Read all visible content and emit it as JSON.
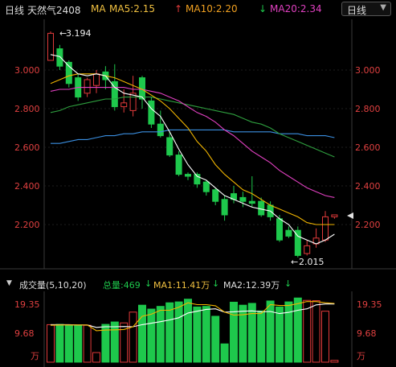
{
  "header": {
    "period": "日线",
    "instrument": "天然气2408",
    "ma_label": "MA",
    "ma5": "MA5:2.15",
    "ma10": "MA10:2.20",
    "ma20": "MA20:2.34",
    "period_selector": "日线"
  },
  "colors": {
    "up": "#e03a3a",
    "down": "#1ec84c",
    "ma5": "#ffffff",
    "ma10": "#f0b400",
    "ma20": "#e040c0",
    "ma60": "#2e9e3e",
    "ma120": "#3a8ee0",
    "price_label": "#e04040"
  },
  "axis": {
    "price_ticks": [
      "3.000",
      "2.800",
      "2.600",
      "2.400",
      "2.200"
    ],
    "volume_ticks_left": [
      "19.35",
      "9.68",
      "万"
    ],
    "volume_ticks_right": [
      "19.35",
      "9.68",
      "万"
    ]
  },
  "annotations": {
    "high": "3.194",
    "low": "2.015"
  },
  "volume_header": {
    "title": "成交量(5,10,20)",
    "total": "总量:469",
    "ma1": "MA1:11.41万",
    "ma2": "MA2:12.39万"
  },
  "chart_data": {
    "type": "candlestick",
    "price_range": [
      2.03,
      3.18
    ],
    "volume_max_wan": 21,
    "candles": [
      {
        "o": 3.05,
        "c": 3.19,
        "h": 3.2,
        "l": 3.05
      },
      {
        "o": 3.11,
        "c": 3.02,
        "h": 3.13,
        "l": 3.0
      },
      {
        "o": 3.04,
        "c": 2.93,
        "h": 3.05,
        "l": 2.91
      },
      {
        "o": 2.96,
        "c": 2.86,
        "h": 2.98,
        "l": 2.84
      },
      {
        "o": 2.88,
        "c": 2.95,
        "h": 2.96,
        "l": 2.86
      },
      {
        "o": 2.92,
        "c": 2.98,
        "h": 3.0,
        "l": 2.88
      },
      {
        "o": 2.99,
        "c": 2.95,
        "h": 3.02,
        "l": 2.9
      },
      {
        "o": 2.94,
        "c": 2.81,
        "h": 3.03,
        "l": 2.79
      },
      {
        "o": 2.81,
        "c": 2.83,
        "h": 2.9,
        "l": 2.78
      },
      {
        "o": 2.79,
        "c": 2.88,
        "h": 2.97,
        "l": 2.76
      },
      {
        "o": 2.96,
        "c": 2.85,
        "h": 2.97,
        "l": 2.8
      },
      {
        "o": 2.84,
        "c": 2.72,
        "h": 2.86,
        "l": 2.7
      },
      {
        "o": 2.72,
        "c": 2.66,
        "h": 2.79,
        "l": 2.65
      },
      {
        "o": 2.65,
        "c": 2.56,
        "h": 2.68,
        "l": 2.55
      },
      {
        "o": 2.56,
        "c": 2.46,
        "h": 2.58,
        "l": 2.45
      },
      {
        "o": 2.46,
        "c": 2.45,
        "h": 2.47,
        "l": 2.43
      },
      {
        "o": 2.46,
        "c": 2.41,
        "h": 2.47,
        "l": 2.39
      },
      {
        "o": 2.42,
        "c": 2.37,
        "h": 2.43,
        "l": 2.35
      },
      {
        "o": 2.38,
        "c": 2.32,
        "h": 2.39,
        "l": 2.3
      },
      {
        "o": 2.33,
        "c": 2.25,
        "h": 2.35,
        "l": 2.22
      },
      {
        "o": 2.36,
        "c": 2.33,
        "h": 2.4,
        "l": 2.31
      },
      {
        "o": 2.34,
        "c": 2.32,
        "h": 2.37,
        "l": 2.29
      },
      {
        "o": 2.32,
        "c": 2.31,
        "h": 2.45,
        "l": 2.29
      },
      {
        "o": 2.32,
        "c": 2.25,
        "h": 2.34,
        "l": 2.24
      },
      {
        "o": 2.3,
        "c": 2.24,
        "h": 2.32,
        "l": 2.22
      },
      {
        "o": 2.23,
        "c": 2.12,
        "h": 2.25,
        "l": 2.11
      },
      {
        "o": 2.17,
        "c": 2.14,
        "h": 2.19,
        "l": 2.13
      },
      {
        "o": 2.17,
        "c": 2.04,
        "h": 2.19,
        "l": 2.03
      },
      {
        "o": 2.05,
        "c": 2.09,
        "h": 2.12,
        "l": 2.04
      },
      {
        "o": 2.1,
        "c": 2.13,
        "h": 2.18,
        "l": 2.08
      },
      {
        "o": 2.12,
        "c": 2.24,
        "h": 2.27,
        "l": 2.11
      },
      {
        "o": 2.24,
        "c": 2.25,
        "h": 2.25,
        "l": 2.23
      }
    ],
    "ma5": [
      3.08,
      3.07,
      3.02,
      2.98,
      2.97,
      2.98,
      2.97,
      2.91,
      2.88,
      2.87,
      2.86,
      2.8,
      2.76,
      2.68,
      2.59,
      2.51,
      2.45,
      2.43,
      2.39,
      2.35,
      2.33,
      2.31,
      2.29,
      2.28,
      2.27,
      2.23,
      2.2,
      2.14,
      2.12,
      2.1,
      2.12,
      2.15
    ],
    "ma10": [
      2.93,
      2.95,
      2.97,
      2.98,
      2.98,
      2.98,
      2.97,
      2.96,
      2.94,
      2.92,
      2.9,
      2.87,
      2.84,
      2.8,
      2.75,
      2.7,
      2.63,
      2.58,
      2.51,
      2.46,
      2.42,
      2.38,
      2.36,
      2.33,
      2.3,
      2.28,
      2.26,
      2.24,
      2.21,
      2.2,
      2.2,
      2.2
    ],
    "ma20": [
      2.89,
      2.9,
      2.9,
      2.91,
      2.91,
      2.91,
      2.91,
      2.91,
      2.91,
      2.9,
      2.9,
      2.89,
      2.88,
      2.86,
      2.84,
      2.81,
      2.78,
      2.76,
      2.73,
      2.69,
      2.66,
      2.62,
      2.58,
      2.55,
      2.52,
      2.48,
      2.45,
      2.42,
      2.39,
      2.37,
      2.35,
      2.34
    ],
    "ma60": [
      2.78,
      2.79,
      2.81,
      2.82,
      2.83,
      2.84,
      2.85,
      2.85,
      2.86,
      2.86,
      2.86,
      2.86,
      2.85,
      2.84,
      2.83,
      2.82,
      2.81,
      2.8,
      2.79,
      2.78,
      2.77,
      2.75,
      2.73,
      2.72,
      2.7,
      2.67,
      2.65,
      2.63,
      2.61,
      2.59,
      2.57,
      2.55
    ],
    "ma120": [
      2.62,
      2.62,
      2.63,
      2.64,
      2.64,
      2.65,
      2.66,
      2.66,
      2.67,
      2.67,
      2.68,
      2.68,
      2.68,
      2.69,
      2.69,
      2.69,
      2.69,
      2.69,
      2.69,
      2.69,
      2.68,
      2.68,
      2.68,
      2.68,
      2.68,
      2.67,
      2.67,
      2.67,
      2.66,
      2.66,
      2.66,
      2.65
    ],
    "volume": [
      12.5,
      12.6,
      12.4,
      12.4,
      12.3,
      3.2,
      12.6,
      13.4,
      13.1,
      16.7,
      19.0,
      17.7,
      18.6,
      19.8,
      20.1,
      21.0,
      18.4,
      18.6,
      15.3,
      6.1,
      20.0,
      19.0,
      19.6,
      17.1,
      20.4,
      18.4,
      20.1,
      21.4,
      20.6,
      20.5,
      17.0,
      0.6
    ],
    "vol_ma5": [
      12.3,
      12.4,
      12.4,
      12.4,
      12.4,
      10.5,
      10.7,
      10.8,
      10.9,
      11.8,
      15.3,
      16.0,
      17.3,
      17.3,
      18.3,
      19.8,
      19.2,
      19.2,
      18.8,
      16.7,
      15.7,
      15.8,
      16.2,
      16.2,
      19.2,
      18.9,
      18.9,
      19.5,
      20.2,
      20.2,
      19.8,
      19.6
    ],
    "vol_ma10": [
      12.5,
      12.5,
      12.5,
      12.4,
      12.4,
      11.6,
      11.8,
      11.8,
      11.9,
      11.8,
      12.5,
      13.0,
      13.5,
      14.1,
      14.8,
      16.4,
      17.0,
      17.6,
      17.8,
      16.7,
      16.8,
      17.0,
      17.1,
      16.8,
      16.9,
      16.2,
      16.6,
      17.3,
      17.8,
      19.1,
      19.4,
      19.4
    ]
  }
}
